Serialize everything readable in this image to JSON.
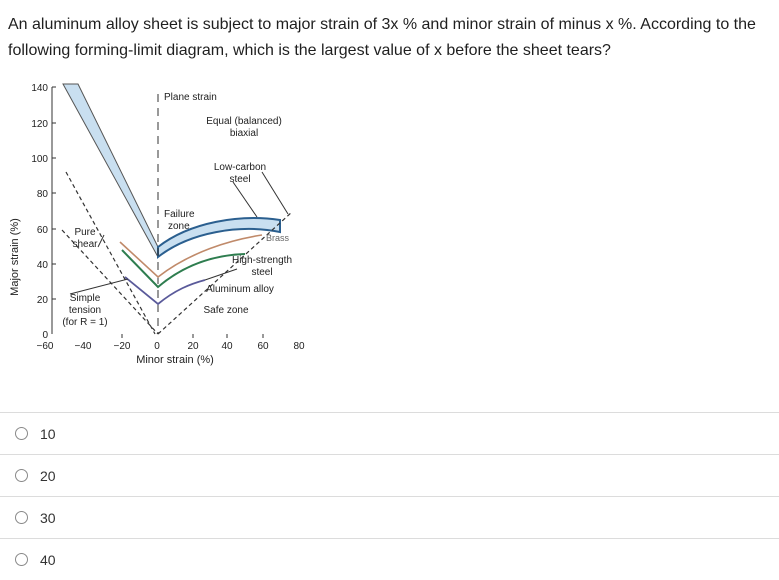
{
  "question": {
    "text": "An aluminum alloy sheet is subject to major strain of 3x % and minor strain of minus x %. According to the following forming-limit diagram, which is the largest value of x before the sheet tears?"
  },
  "figure": {
    "y_label": "Major strain (%)",
    "x_label": "Minor strain (%)",
    "y_ticks": [
      "140",
      "120",
      "100",
      "80",
      "60",
      "40",
      "20",
      "0"
    ],
    "x_ticks": [
      "−60",
      "−40",
      "−20",
      "0",
      "20",
      "40",
      "60",
      "80"
    ],
    "annotations": {
      "plane_strain": "Plane strain",
      "equal_line1": "Equal (balanced)",
      "equal_line2": "biaxial",
      "lowcarbon_line1": "Low-carbon",
      "lowcarbon_line2": "steel",
      "failure_line1": "Failure",
      "failure_line2": "zone",
      "brass": "Brass",
      "hss_line1": "High-strength",
      "hss_line2": "steel",
      "aluminum": "Aluminum alloy",
      "safe_zone": "Safe zone",
      "pure_line1": "Pure",
      "pure_line2": "shear",
      "simple_line1": "Simple",
      "simple_line2": "tension",
      "simple_line3": "(for R = 1)"
    },
    "colors": {
      "low_carbon": "#2b5f8f",
      "failure_fill": "#c9dff0",
      "brass": "#c08a6a",
      "high_strength": "#2e7d4f",
      "aluminum": "#5a5a9a"
    }
  },
  "options": [
    {
      "label": "10"
    },
    {
      "label": "20"
    },
    {
      "label": "30"
    },
    {
      "label": "40"
    }
  ]
}
